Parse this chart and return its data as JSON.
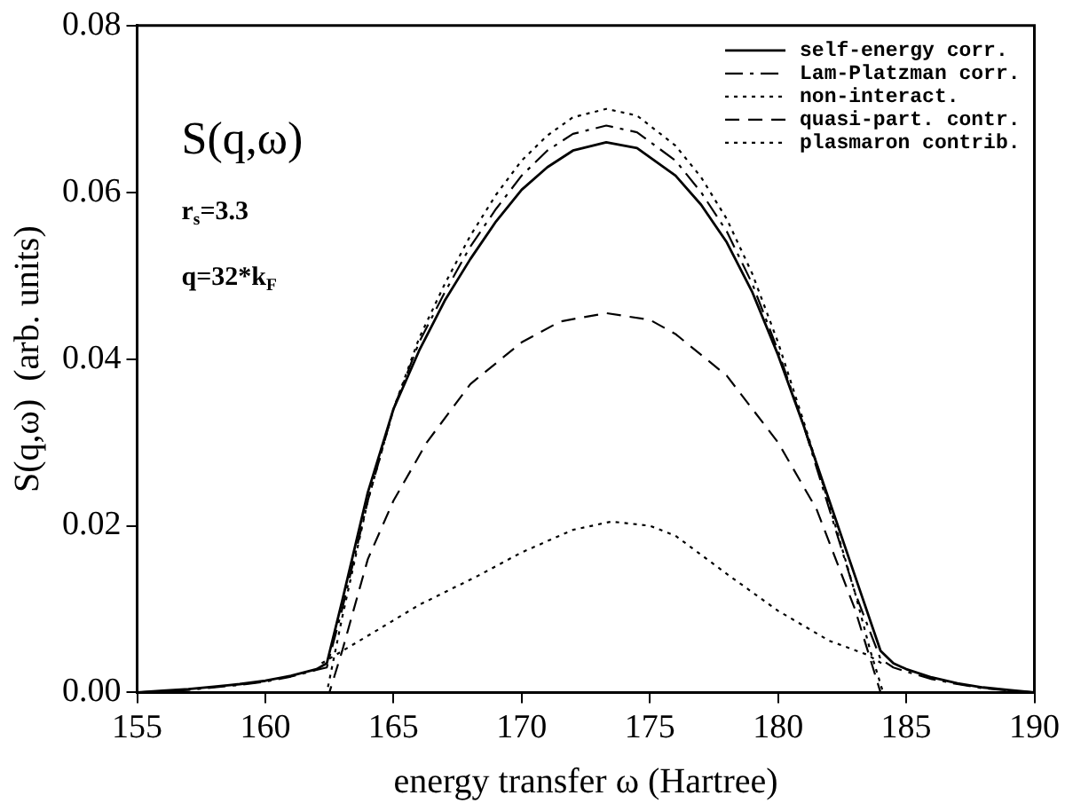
{
  "chart_data": {
    "type": "line",
    "xlabel": "energy transfer ω (Hartree)",
    "ylabel": "S(q,ω)  (arb. units)",
    "annotations": [
      "S(q,ω)",
      "r$_{s}$=3.3",
      "q=32*k$_{F}$"
    ],
    "xlim": [
      155,
      190
    ],
    "xticks": [
      155,
      160,
      165,
      170,
      175,
      180,
      185,
      190
    ],
    "ylim": [
      0,
      0.08
    ],
    "yticks": [
      {
        "value": 0,
        "label": "0.00"
      },
      {
        "value": 0.02,
        "label": "0.02"
      },
      {
        "value": 0.04,
        "label": "0.04"
      },
      {
        "value": 0.06,
        "label": "0.06"
      },
      {
        "value": 0.08,
        "label": "0.08"
      }
    ],
    "legend": "top right",
    "grid": false,
    "marker": "none",
    "series": [
      {
        "name": "self-energy corr.",
        "color": "#000000",
        "line_style": "solid",
        "x": [
          155,
          156,
          157,
          158,
          159,
          160,
          161,
          162,
          162.4,
          163,
          164,
          165,
          166,
          167,
          168,
          169,
          170,
          171,
          172,
          173.3,
          174.5,
          176,
          177,
          178,
          179,
          180,
          181,
          182,
          183,
          184,
          184.5,
          185,
          186,
          187,
          188,
          189,
          190
        ],
        "values": [
          0,
          0.0002,
          0.0004,
          0.0007,
          0.001,
          0.0014,
          0.002,
          0.0028,
          0.0035,
          0.011,
          0.024,
          0.034,
          0.041,
          0.047,
          0.052,
          0.0565,
          0.0603,
          0.063,
          0.065,
          0.066,
          0.0653,
          0.062,
          0.0585,
          0.054,
          0.048,
          0.0405,
          0.032,
          0.023,
          0.014,
          0.005,
          0.0035,
          0.0028,
          0.0018,
          0.0011,
          0.0006,
          0.0003,
          0
        ]
      },
      {
        "name": "Lam-Platzman corr.",
        "color": "#000000",
        "line_style": "dashdot",
        "x": [
          155,
          157,
          159,
          160,
          161,
          162,
          162.4,
          163,
          164,
          165,
          166,
          167,
          168,
          169,
          170,
          171,
          172,
          173.3,
          174.5,
          176,
          177,
          178,
          179,
          180,
          181,
          182,
          183,
          184,
          184.5,
          185,
          186,
          187,
          188,
          190
        ],
        "values": [
          0,
          0.0003,
          0.0009,
          0.0013,
          0.0019,
          0.0027,
          0.003,
          0.01,
          0.023,
          0.034,
          0.042,
          0.048,
          0.0535,
          0.058,
          0.062,
          0.065,
          0.067,
          0.068,
          0.0672,
          0.0638,
          0.06,
          0.0553,
          0.049,
          0.041,
          0.032,
          0.022,
          0.012,
          0.004,
          0.003,
          0.0025,
          0.0016,
          0.001,
          0.0005,
          0
        ]
      },
      {
        "name": "non-interact.",
        "color": "#000000",
        "line_style": "dotted",
        "x": [
          155,
          162,
          162.4,
          163,
          164,
          165,
          166,
          167,
          168,
          169,
          170,
          171,
          172,
          173.3,
          174.5,
          176,
          177,
          178,
          179,
          180,
          181,
          182,
          183,
          183.6,
          184.1,
          185,
          190
        ],
        "values": [
          0,
          0,
          0,
          0.009,
          0.023,
          0.034,
          0.0425,
          0.049,
          0.0548,
          0.0597,
          0.0638,
          0.0668,
          0.069,
          0.07,
          0.0692,
          0.0656,
          0.0618,
          0.0568,
          0.0502,
          0.042,
          0.0325,
          0.0225,
          0.012,
          0.005,
          0,
          0,
          0
        ]
      },
      {
        "name": "quasi-part. contr.",
        "color": "#000000",
        "line_style": "dashed",
        "x": [
          155,
          162.5,
          163,
          164,
          165,
          166.3,
          168,
          170,
          171.5,
          173.3,
          175,
          176,
          178,
          180,
          181.5,
          183,
          184,
          190
        ],
        "values": [
          0,
          0,
          0.005,
          0.016,
          0.023,
          0.03,
          0.037,
          0.042,
          0.0445,
          0.0455,
          0.0447,
          0.043,
          0.038,
          0.03,
          0.022,
          0.01,
          0,
          0
        ]
      },
      {
        "name": "plasmaron contrib.",
        "color": "#000000",
        "line_style": "dotted",
        "x": [
          162.2,
          164,
          166,
          168.3,
          170,
          172,
          173.5,
          175,
          176,
          178.1,
          180,
          182,
          183.5,
          184.2
        ],
        "values": [
          0.0035,
          0.0068,
          0.0105,
          0.014,
          0.0168,
          0.0195,
          0.0205,
          0.02,
          0.0188,
          0.014,
          0.0098,
          0.0062,
          0.0045,
          0.0032
        ]
      }
    ]
  }
}
